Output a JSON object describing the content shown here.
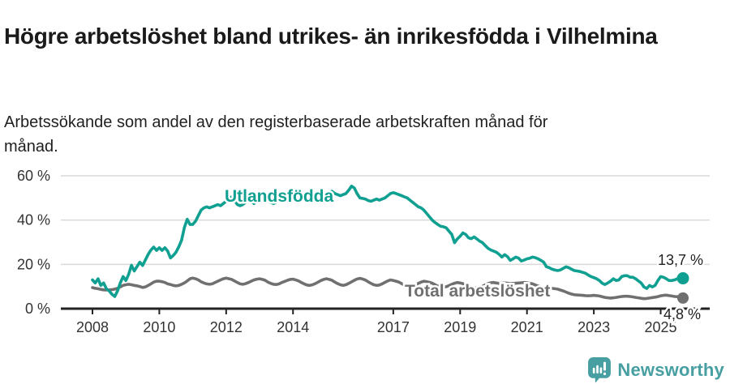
{
  "header": {
    "title": "Högre arbetslöshet bland utrikes- än inrikesfödda i Vilhelmina",
    "subtitle": "Arbetssökande som andel av den registerbaserade arbetskraften månad för månad."
  },
  "chart_data": {
    "type": "line",
    "frequency": "monthly",
    "x_start": "2008-01",
    "x_end": "2025-09",
    "ylim": [
      0,
      60
    ],
    "grid": "horizontal",
    "colors": {
      "axis": "#222222",
      "gridline": "#d9d9d9",
      "tick_text": "#333333"
    },
    "y_ticks": [
      {
        "value": 0,
        "label": "0 %"
      },
      {
        "value": 20,
        "label": "20 %"
      },
      {
        "value": 40,
        "label": "40 %"
      },
      {
        "value": 60,
        "label": "60 %"
      }
    ],
    "x_ticks": [
      2008,
      2010,
      2012,
      2014,
      2017,
      2019,
      2021,
      2023,
      2025
    ],
    "series": [
      {
        "name": "Utlandsfödda",
        "color": "#10a091",
        "end_label": "13,7 %",
        "values": [
          13.0,
          11.6,
          13.5,
          10.5,
          11.6,
          9.0,
          8.0,
          6.5,
          5.5,
          8.0,
          11.6,
          14.5,
          12.7,
          15.5,
          19.6,
          17.0,
          19.0,
          21.0,
          19.5,
          22.0,
          24.5,
          26.5,
          27.8,
          26.3,
          27.5,
          26.3,
          27.5,
          26.0,
          22.9,
          24.0,
          25.5,
          28.0,
          31.0,
          36.6,
          40.4,
          38.0,
          38.0,
          39.5,
          42.0,
          44.5,
          45.5,
          46.0,
          45.5,
          46.0,
          46.5,
          47.0,
          46.5,
          47.5,
          48.5,
          50.0,
          50.5,
          49.0,
          47.0,
          46.5,
          47.0,
          48.0,
          49.5,
          48.5,
          47.5,
          48.5,
          49.0,
          50.0,
          49.5,
          48.5,
          48.0,
          47.5,
          48.0,
          48.5,
          49.0,
          49.5,
          49.0,
          48.5,
          49.5,
          50.5,
          51.0,
          50.0,
          49.0,
          48.5,
          49.0,
          50.0,
          51.0,
          51.5,
          51.0,
          50.5,
          51.5,
          52.5,
          53.0,
          52.0,
          51.5,
          51.0,
          51.5,
          52.0,
          53.5,
          55.3,
          54.5,
          52.0,
          50.0,
          49.8,
          49.5,
          48.8,
          48.5,
          49.0,
          49.5,
          49.0,
          49.5,
          50.0,
          51.0,
          52.0,
          52.4,
          52.0,
          51.5,
          51.0,
          50.5,
          50.0,
          49.0,
          48.0,
          47.0,
          46.0,
          45.5,
          44.5,
          43.0,
          41.5,
          40.0,
          38.9,
          38.0,
          37.2,
          37.0,
          36.5,
          35.0,
          33.5,
          29.8,
          31.5,
          32.7,
          34.2,
          33.5,
          32.0,
          31.6,
          32.4,
          31.5,
          30.5,
          29.8,
          28.5,
          27.3,
          26.5,
          26.0,
          25.5,
          24.5,
          23.3,
          24.4,
          23.5,
          21.8,
          22.5,
          23.3,
          22.8,
          21.5,
          22.0,
          22.5,
          22.8,
          23.3,
          23.0,
          22.5,
          21.8,
          21.0,
          18.9,
          18.5,
          17.8,
          17.5,
          17.2,
          17.5,
          18.2,
          18.9,
          18.5,
          17.8,
          17.2,
          17.0,
          16.8,
          16.4,
          16.0,
          15.2,
          14.5,
          14.0,
          13.5,
          12.7,
          11.5,
          10.9,
          11.6,
          12.4,
          13.5,
          12.7,
          13.0,
          14.5,
          14.9,
          14.9,
          14.2,
          14.2,
          13.5,
          12.5,
          11.6,
          9.8,
          9.1,
          10.5,
          9.8,
          10.5,
          12.7,
          14.5,
          14.2,
          13.5,
          12.7,
          12.7,
          13.0,
          13.5,
          13.2,
          13.7
        ]
      },
      {
        "name": "Total arbetslöshet",
        "color": "#707070",
        "end_label": "4,8 %",
        "values": [
          9.5,
          9.2,
          9.0,
          8.7,
          8.5,
          8.4,
          8.5,
          8.6,
          8.8,
          9.2,
          9.8,
          10.5,
          10.8,
          11.0,
          10.8,
          10.5,
          10.3,
          10.0,
          9.6,
          9.8,
          10.5,
          11.2,
          12.0,
          12.4,
          12.4,
          12.2,
          11.8,
          11.2,
          10.9,
          10.5,
          10.3,
          10.5,
          11.0,
          11.6,
          12.5,
          13.5,
          13.8,
          13.5,
          13.0,
          12.2,
          11.6,
          11.2,
          11.0,
          11.2,
          11.8,
          12.4,
          13.0,
          13.5,
          13.8,
          13.5,
          13.2,
          12.5,
          11.8,
          11.2,
          11.0,
          11.3,
          11.8,
          12.4,
          13.0,
          13.3,
          13.5,
          13.2,
          12.8,
          12.0,
          11.4,
          11.0,
          10.9,
          11.2,
          11.8,
          12.3,
          12.8,
          13.2,
          13.3,
          13.0,
          12.5,
          11.8,
          11.2,
          10.7,
          10.5,
          10.8,
          11.3,
          12.0,
          12.7,
          13.2,
          13.5,
          13.2,
          12.8,
          12.0,
          11.3,
          10.8,
          10.5,
          10.8,
          11.4,
          12.1,
          12.8,
          13.4,
          13.7,
          13.4,
          12.9,
          12.1,
          11.4,
          10.8,
          10.5,
          10.7,
          11.2,
          11.9,
          12.5,
          13.0,
          12.7,
          12.4,
          12.0,
          11.3,
          10.7,
          10.2,
          10.0,
          10.3,
          10.8,
          11.4,
          12.0,
          12.4,
          12.2,
          11.9,
          11.5,
          10.8,
          10.2,
          9.8,
          9.6,
          9.9,
          10.4,
          11.0,
          11.5,
          11.8,
          11.6,
          11.3,
          10.9,
          10.3,
          9.8,
          9.4,
          9.3,
          9.6,
          10.1,
          10.7,
          11.3,
          11.7,
          11.8,
          11.6,
          11.4,
          11.5,
          11.6,
          11.5,
          11.3,
          11.4,
          11.5,
          11.6,
          11.7,
          11.8,
          11.7,
          11.5,
          11.2,
          10.7,
          10.2,
          9.8,
          9.5,
          9.4,
          9.3,
          9.2,
          9.0,
          8.8,
          8.4,
          8.0,
          7.5,
          7.0,
          6.6,
          6.3,
          6.2,
          6.1,
          6.0,
          5.9,
          5.8,
          5.9,
          6.0,
          5.9,
          5.7,
          5.4,
          5.1,
          4.9,
          4.8,
          4.9,
          5.1,
          5.3,
          5.5,
          5.6,
          5.6,
          5.5,
          5.3,
          5.1,
          4.9,
          4.7,
          4.5,
          4.6,
          4.8,
          5.0,
          5.2,
          5.4,
          5.8,
          6.0,
          6.1,
          5.9,
          5.7,
          5.5,
          5.4,
          5.2,
          4.8
        ]
      }
    ]
  },
  "footer": {
    "brand": "Newsworthy",
    "brand_color": "#479fa1",
    "logo_icon": "bar-chart-speech-bubble-icon"
  }
}
